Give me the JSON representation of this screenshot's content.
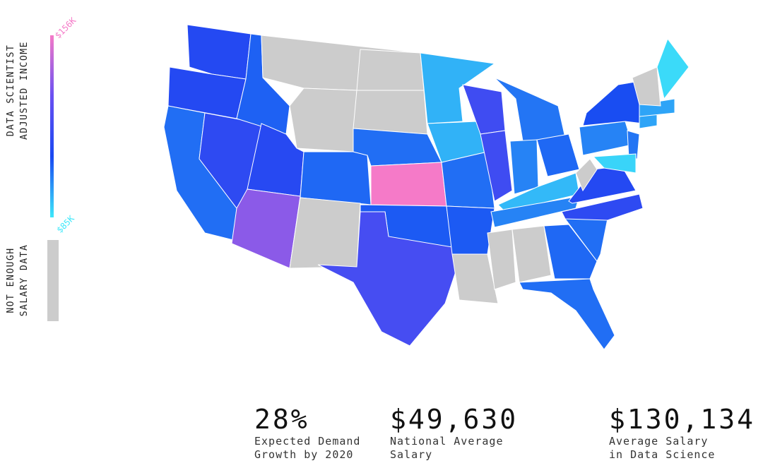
{
  "chart_data": {
    "type": "choropleth",
    "legend_title": "DATA SCIENTIST ADJUSTED INCOME",
    "ticks": [
      {
        "value": 156,
        "label": "$156K"
      },
      {
        "value": 85,
        "label": "$85K"
      }
    ],
    "colorscale": [
      "#3ee8fa",
      "#1848f2",
      "#6a50f2",
      "#f57ac8"
    ],
    "no_data_label": "NOT ENOUGH SALARY DATA",
    "no_data_color": "#cccccc",
    "values": [
      112,
      112,
      103,
      115,
      105,
      null,
      null,
      113,
      138,
      104,
      null,
      null,
      null,
      103,
      156,
      106,
      122,
      93,
      93,
      103,
      106,
      null,
      120,
      120,
      102,
      100,
      104,
      92,
      100,
      null,
      null,
      104,
      103,
      103,
      115,
      112,
      null,
      100,
      108,
      102,
      88,
      95,
      95,
      null,
      87
    ]
  },
  "stats": [
    {
      "value": "28%",
      "label": "Expected Demand\nGrowth by 2020"
    },
    {
      "value": "$49,630",
      "label": "National Average\nSalary"
    },
    {
      "value": "$130,134",
      "label": "Average Salary\nin Data Science"
    }
  ]
}
